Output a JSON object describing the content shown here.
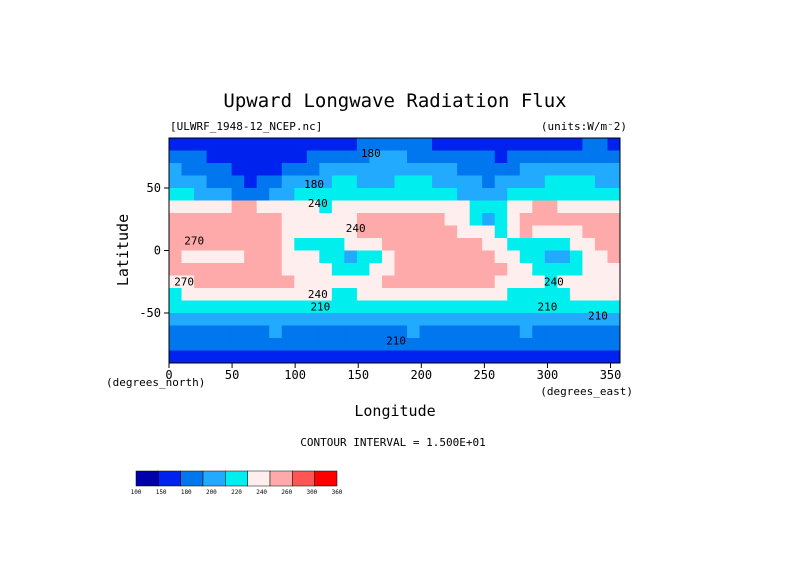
{
  "chart_data": {
    "type": "heatmap",
    "title": "Upward Longwave Radiation Flux",
    "file_label": "[ULWRF_1948-12_NCEP.nc]",
    "units_label": "(units:W/m⁻2)",
    "xlabel": "Longitude",
    "ylabel": "Latitude",
    "x_unit_label": "(degrees_east)",
    "y_unit_label": "(degrees_north)",
    "xlim": [
      0,
      357.5
    ],
    "ylim": [
      -90,
      90
    ],
    "x_ticks": [
      0,
      50,
      100,
      150,
      200,
      250,
      300,
      350
    ],
    "y_ticks": [
      -50,
      0,
      50
    ],
    "contour_interval_label": "CONTOUR INTERVAL = 1.500E+01",
    "colorbar": {
      "levels": [
        100,
        150,
        180,
        200,
        220,
        240,
        260,
        300,
        360
      ],
      "colors": [
        "#0000aa",
        "#0022ee",
        "#0077ee",
        "#22aaff",
        "#00eeee",
        "#ffeeee",
        "#ffaaaa",
        "#ff5555",
        "#ff0000"
      ]
    },
    "contour_labels": [
      {
        "text": "180",
        "lon": 160,
        "lat": 75
      },
      {
        "text": "180",
        "lon": 115,
        "lat": 50
      },
      {
        "text": "240",
        "lon": 118,
        "lat": 35
      },
      {
        "text": "270",
        "lon": 20,
        "lat": 5
      },
      {
        "text": "240",
        "lon": 148,
        "lat": 15
      },
      {
        "text": "270",
        "lon": 12,
        "lat": -28
      },
      {
        "text": "240",
        "lon": 118,
        "lat": -38
      },
      {
        "text": "210",
        "lon": 120,
        "lat": -48
      },
      {
        "text": "210",
        "lon": 300,
        "lat": -48
      },
      {
        "text": "210",
        "lon": 340,
        "lat": -55
      },
      {
        "text": "210",
        "lon": 180,
        "lat": -75
      },
      {
        "text": "240",
        "lon": 305,
        "lat": -28
      }
    ],
    "field": {
      "lon_step": 10,
      "lat_values": [
        85,
        75,
        65,
        55,
        45,
        35,
        25,
        15,
        5,
        -5,
        -15,
        -25,
        -35,
        -45,
        -55,
        -65,
        -75,
        -85
      ],
      "values": [
        [
          175,
          170,
          168,
          165,
          162,
          160,
          158,
          160,
          162,
          165,
          168,
          170,
          172,
          175,
          178,
          180,
          182,
          185,
          185,
          182,
          180,
          178,
          175,
          172,
          170,
          168,
          165,
          165,
          168,
          170,
          172,
          175,
          178,
          180,
          180,
          178
        ],
        [
          185,
          182,
          180,
          175,
          170,
          165,
          162,
          165,
          168,
          172,
          175,
          180,
          185,
          190,
          195,
          198,
          200,
          202,
          200,
          198,
          195,
          192,
          188,
          185,
          182,
          180,
          178,
          180,
          182,
          185,
          188,
          190,
          192,
          195,
          192,
          188
        ],
        [
          200,
          198,
          195,
          185,
          180,
          172,
          168,
          170,
          175,
          182,
          190,
          198,
          205,
          210,
          212,
          210,
          208,
          210,
          212,
          210,
          208,
          205,
          200,
          195,
          192,
          190,
          190,
          195,
          200,
          205,
          208,
          210,
          212,
          210,
          208,
          205
        ],
        [
          215,
          212,
          205,
          195,
          185,
          180,
          178,
          180,
          190,
          200,
          210,
          215,
          218,
          220,
          222,
          218,
          215,
          218,
          222,
          225,
          222,
          218,
          212,
          205,
          200,
          198,
          200,
          208,
          215,
          218,
          222,
          225,
          222,
          220,
          218,
          215
        ],
        [
          225,
          222,
          215,
          208,
          200,
          195,
          192,
          195,
          205,
          215,
          222,
          228,
          230,
          232,
          232,
          228,
          225,
          228,
          232,
          235,
          232,
          228,
          220,
          212,
          205,
          208,
          215,
          225,
          232,
          235,
          238,
          238,
          235,
          232,
          230,
          228
        ],
        [
          245,
          248,
          250,
          255,
          258,
          260,
          262,
          255,
          248,
          245,
          242,
          240,
          238,
          240,
          245,
          248,
          250,
          252,
          254,
          255,
          254,
          250,
          245,
          240,
          232,
          225,
          235,
          248,
          258,
          262,
          262,
          258,
          255,
          252,
          250,
          248
        ],
        [
          262,
          268,
          272,
          275,
          278,
          280,
          282,
          278,
          268,
          258,
          252,
          248,
          245,
          250,
          258,
          262,
          265,
          268,
          270,
          272,
          270,
          265,
          258,
          248,
          230,
          200,
          230,
          255,
          268,
          272,
          272,
          268,
          265,
          262,
          262,
          262
        ],
        [
          278,
          282,
          285,
          288,
          285,
          282,
          278,
          275,
          265,
          255,
          245,
          242,
          240,
          245,
          255,
          262,
          268,
          272,
          275,
          278,
          275,
          272,
          268,
          258,
          248,
          240,
          235,
          250,
          260,
          258,
          252,
          250,
          255,
          265,
          272,
          275
        ],
        [
          272,
          268,
          262,
          262,
          268,
          272,
          275,
          270,
          262,
          250,
          238,
          232,
          228,
          235,
          240,
          245,
          255,
          265,
          272,
          278,
          280,
          280,
          278,
          272,
          265,
          255,
          245,
          238,
          232,
          228,
          225,
          232,
          242,
          255,
          265,
          270
        ],
        [
          262,
          255,
          245,
          242,
          248,
          258,
          268,
          272,
          265,
          255,
          248,
          240,
          232,
          222,
          218,
          225,
          238,
          252,
          265,
          275,
          280,
          282,
          282,
          280,
          275,
          265,
          255,
          245,
          235,
          222,
          215,
          218,
          228,
          242,
          255,
          262
        ],
        [
          260,
          262,
          265,
          268,
          270,
          272,
          272,
          270,
          265,
          258,
          250,
          245,
          240,
          235,
          232,
          238,
          248,
          258,
          268,
          275,
          280,
          282,
          282,
          280,
          278,
          275,
          268,
          258,
          245,
          235,
          228,
          222,
          232,
          245,
          255,
          258
        ],
        [
          255,
          258,
          262,
          265,
          268,
          272,
          275,
          275,
          270,
          262,
          255,
          250,
          248,
          245,
          242,
          245,
          252,
          260,
          265,
          270,
          272,
          272,
          270,
          268,
          265,
          262,
          258,
          252,
          245,
          240,
          238,
          242,
          248,
          252,
          255,
          255
        ],
        [
          238,
          240,
          242,
          245,
          248,
          250,
          252,
          252,
          250,
          248,
          245,
          242,
          240,
          238,
          238,
          240,
          242,
          245,
          248,
          250,
          252,
          252,
          250,
          248,
          245,
          242,
          240,
          238,
          236,
          235,
          236,
          238,
          240,
          242,
          242,
          240
        ],
        [
          225,
          226,
          228,
          230,
          232,
          232,
          230,
          228,
          226,
          224,
          222,
          220,
          220,
          222,
          224,
          226,
          228,
          230,
          230,
          228,
          226,
          224,
          222,
          220,
          220,
          222,
          224,
          226,
          228,
          228,
          226,
          224,
          222,
          222,
          224,
          225
        ],
        [
          212,
          210,
          208,
          208,
          210,
          212,
          212,
          210,
          208,
          206,
          205,
          205,
          206,
          208,
          210,
          210,
          208,
          206,
          205,
          205,
          206,
          208,
          210,
          210,
          208,
          206,
          205,
          206,
          208,
          210,
          210,
          208,
          206,
          206,
          208,
          210
        ],
        [
          198,
          195,
          192,
          190,
          190,
          192,
          195,
          198,
          200,
          198,
          195,
          192,
          190,
          188,
          188,
          190,
          192,
          195,
          198,
          200,
          198,
          195,
          192,
          190,
          190,
          192,
          195,
          198,
          200,
          198,
          195,
          192,
          190,
          192,
          195,
          198
        ],
        [
          185,
          182,
          180,
          182,
          185,
          188,
          190,
          188,
          185,
          182,
          180,
          182,
          185,
          188,
          190,
          188,
          185,
          182,
          180,
          182,
          185,
          188,
          190,
          188,
          185,
          182,
          180,
          182,
          185,
          188,
          190,
          188,
          185,
          182,
          182,
          185
        ],
        [
          172,
          170,
          168,
          170,
          172,
          175,
          175,
          172,
          170,
          168,
          168,
          170,
          172,
          175,
          175,
          172,
          170,
          168,
          168,
          170,
          172,
          175,
          175,
          172,
          170,
          168,
          168,
          170,
          172,
          175,
          175,
          172,
          170,
          170,
          170,
          172
        ]
      ]
    }
  }
}
